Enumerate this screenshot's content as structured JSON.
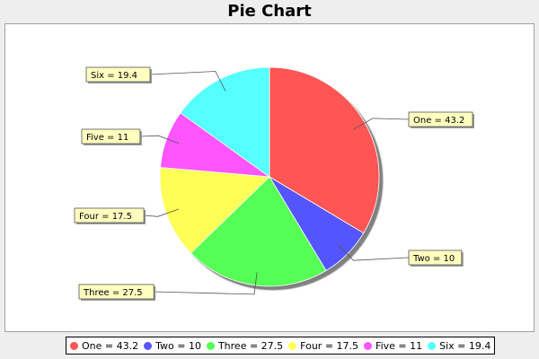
{
  "chart_data": {
    "type": "pie",
    "title": "Pie Chart",
    "slices": [
      {
        "name": "One",
        "value": 43.2,
        "label": "One = 43.2",
        "color": "#ff5555"
      },
      {
        "name": "Two",
        "value": 10,
        "label": "Two = 10",
        "color": "#5555ff"
      },
      {
        "name": "Three",
        "value": 27.5,
        "label": "Three = 27.5",
        "color": "#55ff55"
      },
      {
        "name": "Four",
        "value": 17.5,
        "label": "Four = 17.5",
        "color": "#ffff55"
      },
      {
        "name": "Five",
        "value": 11,
        "label": "Five = 11",
        "color": "#ff55ff"
      },
      {
        "name": "Six",
        "value": 19.4,
        "label": "Six = 19.4",
        "color": "#55ffff"
      }
    ],
    "start_angle_deg": 90,
    "direction": "clockwise",
    "legend_position": "bottom"
  },
  "colors": {
    "label_box_fill": "#ffffc0",
    "background": "#eeeeee",
    "plot_background": "#ffffff"
  }
}
